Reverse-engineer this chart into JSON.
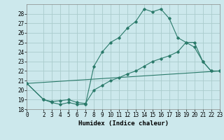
{
  "xlabel": "Humidex (Indice chaleur)",
  "bg_color": "#cce8ec",
  "grid_color": "#aacccc",
  "line_color": "#2a7a6a",
  "xlim": [
    0,
    23
  ],
  "ylim": [
    18,
    29
  ],
  "yticks": [
    18,
    19,
    20,
    21,
    22,
    23,
    24,
    25,
    26,
    27,
    28
  ],
  "xticks": [
    0,
    2,
    3,
    4,
    5,
    6,
    7,
    8,
    9,
    10,
    11,
    12,
    13,
    14,
    15,
    16,
    17,
    18,
    19,
    20,
    21,
    22,
    23
  ],
  "line1_x": [
    0,
    2,
    3,
    4,
    5,
    6,
    7,
    8,
    9,
    10,
    11,
    12,
    13,
    14,
    15,
    16,
    17,
    18,
    19,
    20,
    21,
    22,
    23
  ],
  "line1_y": [
    20.7,
    19.0,
    18.7,
    18.5,
    18.7,
    18.5,
    18.5,
    22.5,
    24.0,
    25.0,
    25.5,
    26.5,
    27.2,
    28.5,
    28.2,
    28.5,
    27.5,
    25.5,
    25.0,
    24.5,
    23.0,
    22.0,
    22.0
  ],
  "line2_x": [
    0,
    2,
    3,
    4,
    5,
    6,
    7,
    8,
    9,
    10,
    11,
    12,
    13,
    14,
    15,
    16,
    17,
    18,
    19,
    20,
    21,
    22,
    23
  ],
  "line2_y": [
    20.7,
    19.0,
    18.8,
    18.9,
    19.0,
    18.7,
    18.6,
    20.0,
    20.5,
    21.0,
    21.3,
    21.7,
    22.0,
    22.5,
    23.0,
    23.3,
    23.6,
    24.0,
    25.0,
    25.0,
    23.0,
    22.0,
    22.0
  ],
  "line3_x": [
    0,
    23
  ],
  "line3_y": [
    20.7,
    22.0
  ],
  "xlabel_fontsize": 6.5,
  "tick_fontsize": 5.5
}
